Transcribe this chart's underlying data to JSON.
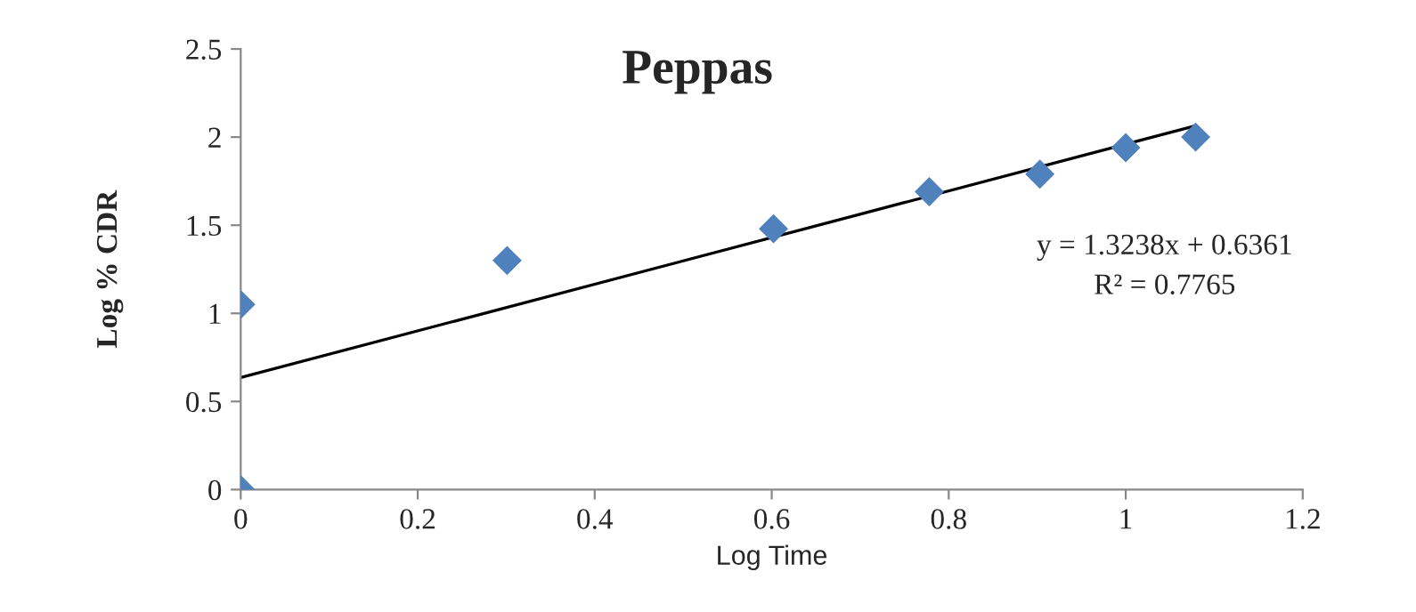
{
  "chart_data": {
    "type": "scatter",
    "title": "Peppas",
    "xlabel": "Log Time",
    "ylabel": "Log % CDR",
    "x": [
      0,
      0,
      0.301,
      0.602,
      0.778,
      0.903,
      1.0,
      1.079
    ],
    "series": [
      {
        "color": "#4f81bd",
        "values": [
          0,
          1.05,
          1.3,
          1.48,
          1.69,
          1.79,
          1.94,
          2.0
        ],
        "marker": "diamond"
      },
      {
        "type": "line",
        "color": "#000000",
        "x": [
          0,
          1.079
        ],
        "values": [
          0.636,
          2.064
        ],
        "marker": "none"
      }
    ],
    "annotations": [
      "y = 1.3238x + 0.6361",
      "R² = 0.7765"
    ],
    "xlim": [
      0,
      1.2
    ],
    "xticks": [
      0,
      0.2,
      0.4,
      0.6,
      0.8,
      1,
      1.2
    ],
    "ylim": [
      0,
      2.5
    ],
    "yticks": [
      0,
      0.5,
      1,
      1.5,
      2,
      2.5
    ],
    "grid": false,
    "legend": false
  }
}
